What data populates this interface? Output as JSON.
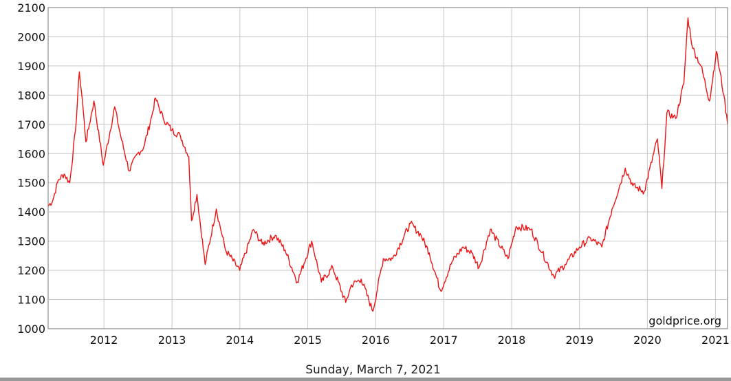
{
  "chart_data": {
    "type": "line",
    "title": "",
    "xlabel": "",
    "ylabel": "",
    "y_ticks": [
      1000,
      1100,
      1200,
      1300,
      1400,
      1500,
      1600,
      1700,
      1800,
      1900,
      2000,
      2100
    ],
    "x_ticks": [
      "2012",
      "2013",
      "2014",
      "2015",
      "2016",
      "2017",
      "2018",
      "2019",
      "2020",
      "2021"
    ],
    "xlim": [
      "2011-03-07",
      "2021-03-07"
    ],
    "ylim": [
      1000,
      2100
    ],
    "grid": true,
    "line_color": "#ee1111",
    "series": [
      {
        "x": [
          "2011-03-07",
          "2011-04-01",
          "2011-05-01",
          "2011-06-01",
          "2011-07-01",
          "2011-08-01",
          "2011-08-22",
          "2011-09-06",
          "2011-09-26",
          "2011-10-15",
          "2011-11-08",
          "2011-12-29",
          "2012-02-28",
          "2012-03-31",
          "2012-05-16",
          "2012-06-30",
          "2012-08-01",
          "2012-09-15",
          "2012-10-04",
          "2012-11-15",
          "2012-12-31",
          "2013-02-15",
          "2013-04-01",
          "2013-04-16",
          "2013-05-15",
          "2013-06-28",
          "2013-08-27",
          "2013-10-15",
          "2013-12-31",
          "2014-03-15",
          "2014-05-01",
          "2014-07-10",
          "2014-09-01",
          "2014-11-06",
          "2015-01-22",
          "2015-03-15",
          "2015-05-15",
          "2015-07-24",
          "2015-08-24",
          "2015-10-15",
          "2015-12-17",
          "2016-02-11",
          "2016-04-01",
          "2016-07-06",
          "2016-09-01",
          "2016-10-15",
          "2016-12-15",
          "2017-02-15",
          "2017-04-15",
          "2017-06-01",
          "2017-07-10",
          "2017-09-08",
          "2017-12-12",
          "2018-01-25",
          "2018-04-15",
          "2018-06-15",
          "2018-08-16",
          "2018-10-15",
          "2019-01-01",
          "2019-03-01",
          "2019-05-01",
          "2019-06-25",
          "2019-09-04",
          "2019-10-15",
          "2019-12-15",
          "2020-02-24",
          "2020-03-19",
          "2020-04-15",
          "2020-06-01",
          "2020-07-15",
          "2020-08-06",
          "2020-09-01",
          "2020-10-15",
          "2020-11-30",
          "2021-01-06",
          "2021-02-15",
          "2021-03-07"
        ],
        "values": [
          1420,
          1440,
          1510,
          1530,
          1500,
          1680,
          1880,
          1790,
          1640,
          1700,
          1780,
          1560,
          1760,
          1660,
          1540,
          1600,
          1620,
          1730,
          1790,
          1720,
          1680,
          1660,
          1590,
          1370,
          1460,
          1220,
          1410,
          1270,
          1200,
          1340,
          1290,
          1320,
          1270,
          1160,
          1300,
          1160,
          1210,
          1090,
          1150,
          1170,
          1060,
          1240,
          1240,
          1360,
          1320,
          1260,
          1130,
          1230,
          1280,
          1260,
          1210,
          1340,
          1240,
          1350,
          1340,
          1260,
          1180,
          1220,
          1280,
          1310,
          1280,
          1410,
          1550,
          1490,
          1470,
          1650,
          1480,
          1740,
          1720,
          1840,
          2065,
          1960,
          1900,
          1780,
          1950,
          1800,
          1700
        ]
      }
    ]
  },
  "watermark": "goldprice.org",
  "caption": "Sunday, March 7, 2021"
}
